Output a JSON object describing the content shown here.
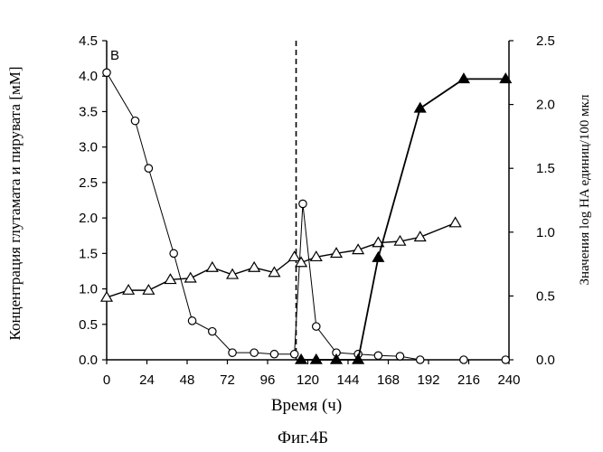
{
  "chart_data": {
    "type": "line",
    "panel_label": "B",
    "xlabel": "Время (ч)",
    "ylabel_left": "Концентрация глутамата и пирувата [мМ]",
    "ylabel_right": "Значения log HA единиц/100 мкл",
    "caption": "Фиг.4Б",
    "xlim": [
      0,
      240
    ],
    "ylim_left": [
      0,
      4.5
    ],
    "ylim_right": [
      0,
      2.5
    ],
    "x_ticks": [
      0,
      24,
      48,
      72,
      96,
      120,
      144,
      168,
      192,
      216,
      240
    ],
    "y_left_ticks": [
      "0.0",
      "0.5",
      "1.0",
      "1.5",
      "2.0",
      "2.5",
      "3.0",
      "3.5",
      "4.0",
      "4.5"
    ],
    "y_right_ticks": [
      "0.0",
      "0.5",
      "1.0",
      "1.5",
      "2.0",
      "2.5"
    ],
    "vline_x": 113,
    "series": [
      {
        "marker": "circle-open",
        "axis": "left",
        "x": [
          0,
          17,
          25,
          40,
          51,
          63,
          75,
          88,
          100,
          112,
          117,
          125,
          137,
          150,
          162,
          175,
          187,
          213,
          238
        ],
        "y": [
          4.05,
          3.37,
          2.7,
          1.5,
          0.55,
          0.4,
          0.1,
          0.1,
          0.08,
          0.08,
          2.2,
          0.47,
          0.1,
          0.08,
          0.06,
          0.05,
          0.0,
          0.0,
          0.0
        ]
      },
      {
        "marker": "triangle-open",
        "axis": "left",
        "x": [
          0,
          13,
          25,
          38,
          50,
          63,
          75,
          88,
          100,
          112,
          116,
          125,
          137,
          150,
          162,
          175,
          187,
          208
        ],
        "y": [
          0.88,
          0.98,
          0.98,
          1.13,
          1.15,
          1.3,
          1.2,
          1.3,
          1.23,
          1.45,
          1.37,
          1.45,
          1.5,
          1.55,
          1.65,
          1.67,
          1.73,
          1.93
        ]
      },
      {
        "marker": "triangle-filled",
        "axis": "right",
        "x": [
          116,
          125,
          137,
          150,
          162,
          187,
          213,
          238
        ],
        "y": [
          0.0,
          0.0,
          0.0,
          0.0,
          0.8,
          1.97,
          2.2,
          2.2
        ]
      }
    ]
  }
}
